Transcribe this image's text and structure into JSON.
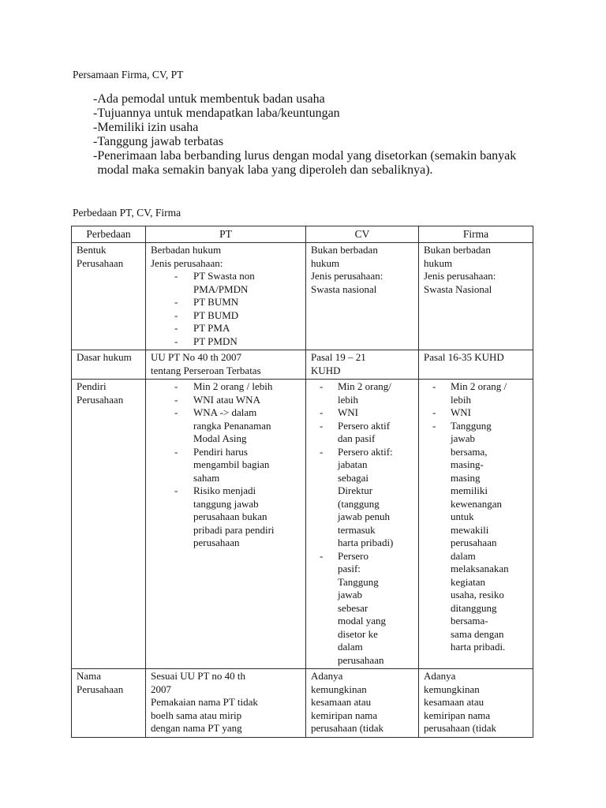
{
  "document": {
    "section1_title": "Persamaan Firma, CV, PT",
    "similarities": [
      "Ada pemodal untuk membentuk badan usaha",
      "Tujuannya untuk mendapatkan laba/keuntungan",
      "Memiliki izin usaha",
      "Tanggung jawab terbatas",
      "Penerimaan laba berbanding lurus dengan modal yang disetorkan (semakin banyak\nmodal maka semakin banyak laba yang diperoleh dan sebaliknya)."
    ],
    "section2_title": "Perbedaan PT, CV, Firma",
    "table": {
      "headers": [
        "Perbedaan",
        "PT",
        "CV",
        "Firma"
      ],
      "rows": [
        {
          "label": "Bentuk\nPerusahaan",
          "pt": [
            {
              "t": "p",
              "x": "Berbadan hukum"
            },
            {
              "t": "p",
              "x": "Jenis perusahaan:"
            },
            {
              "t": "li",
              "x": "PT Swasta non\nPMA/PMDN"
            },
            {
              "t": "li",
              "x": "PT BUMN"
            },
            {
              "t": "li",
              "x": "PT BUMD"
            },
            {
              "t": "li",
              "x": "PT PMA"
            },
            {
              "t": "li",
              "x": "PT PMDN"
            }
          ],
          "cv": [
            {
              "t": "p",
              "x": "Bukan berbadan\nhukum"
            },
            {
              "t": "p",
              "x": "Jenis perusahaan:\nSwasta nasional"
            }
          ],
          "firma": [
            {
              "t": "p",
              "x": "Bukan berbadan\nhukum"
            },
            {
              "t": "p",
              "x": "Jenis perusahaan:\nSwasta Nasional"
            }
          ]
        },
        {
          "label": "Dasar hukum",
          "pt": [
            {
              "t": "p",
              "x": "UU PT No 40 th 2007\ntentang Perseroan Terbatas"
            }
          ],
          "cv": [
            {
              "t": "p",
              "x": "Pasal 19 – 21\nKUHD"
            }
          ],
          "firma": [
            {
              "t": "p",
              "x": "Pasal 16-35 KUHD"
            }
          ]
        },
        {
          "label": "Pendiri\nPerusahaan",
          "pt": [
            {
              "t": "li",
              "x": "Min 2 orang / lebih"
            },
            {
              "t": "li",
              "x": "WNI atau WNA"
            },
            {
              "t": "li",
              "x": "WNA -> dalam\nrangka Penanaman\nModal Asing"
            },
            {
              "t": "li",
              "x": "Pendiri harus\nmengambil bagian\nsaham"
            },
            {
              "t": "li",
              "x": "Risiko menjadi\ntanggung jawab\nperusahaan bukan\npribadi para pendiri\nperusahaan"
            }
          ],
          "cv": [
            {
              "t": "li",
              "x": "Min 2 orang/\nlebih"
            },
            {
              "t": "li",
              "x": "WNI"
            },
            {
              "t": "li",
              "x": "Persero aktif\ndan pasif"
            },
            {
              "t": "li",
              "x": "Persero aktif:\njabatan\nsebagai\nDirektur\n(tanggung\njawab penuh\ntermasuk\nharta pribadi)"
            },
            {
              "t": "li",
              "x": "Persero\npasif:\nTanggung\njawab\nsebesar\nmodal yang\ndisetor ke\ndalam\nperusahaan"
            }
          ],
          "firma": [
            {
              "t": "li",
              "x": "Min 2 orang /\nlebih"
            },
            {
              "t": "li",
              "x": "WNI"
            },
            {
              "t": "li",
              "x": "Tanggung\njawab\nbersama,\nmasing-\nmasing\nmemiliki\nkewenangan\nuntuk\nmewakili\nperusahaan\ndalam\nmelaksanakan\nkegiatan\nusaha, resiko\nditanggung\nbersama-\nsama dengan\nharta pribadi."
            }
          ]
        },
        {
          "label": "Nama\nPerusahaan",
          "pt": [
            {
              "t": "p",
              "x": "Sesuai UU PT no 40 th\n2007\nPemakaian nama PT tidak\nboelh sama atau mirip\ndengan nama PT yang"
            }
          ],
          "cv": [
            {
              "t": "p",
              "x": "Adanya\nkemungkinan\nkesamaan atau\nkemiripan nama\nperusahaan (tidak"
            }
          ],
          "firma": [
            {
              "t": "p",
              "x": "Adanya\nkemungkinan\nkesamaan atau\nkemiripan nama\nperusahaan (tidak"
            }
          ]
        }
      ]
    }
  }
}
